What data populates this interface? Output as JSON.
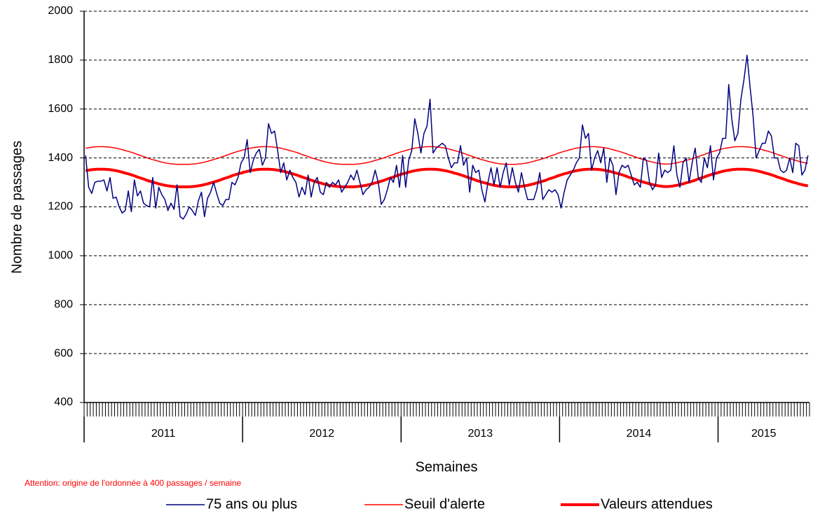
{
  "chart_data": {
    "type": "line",
    "y_label": "Nombre de passages",
    "x_label": "Semaines",
    "note": "Attention: origine de l'ordonnée à 400 passages / semaine",
    "ylim": [
      400,
      2000
    ],
    "yticks": [
      400,
      600,
      800,
      1000,
      1200,
      1400,
      1600,
      1800,
      2000
    ],
    "grid": true,
    "year_groups": [
      {
        "label": "2011",
        "weeks": 52
      },
      {
        "label": "2012",
        "weeks": 52
      },
      {
        "label": "2013",
        "weeks": 52
      },
      {
        "label": "2014",
        "weeks": 52
      },
      {
        "label": "2015",
        "weeks": 30
      }
    ],
    "series": [
      {
        "name": "75 ans ou plus",
        "color": "#000080",
        "width": 1.5,
        "values": [
          1410,
          1280,
          1255,
          1300,
          1305,
          1305,
          1310,
          1265,
          1320,
          1235,
          1240,
          1200,
          1175,
          1185,
          1265,
          1180,
          1310,
          1245,
          1265,
          1215,
          1205,
          1200,
          1320,
          1195,
          1280,
          1250,
          1230,
          1185,
          1215,
          1190,
          1290,
          1160,
          1150,
          1170,
          1200,
          1185,
          1165,
          1225,
          1260,
          1160,
          1235,
          1260,
          1300,
          1255,
          1215,
          1205,
          1230,
          1230,
          1300,
          1290,
          1320,
          1380,
          1400,
          1475,
          1340,
          1390,
          1420,
          1435,
          1370,
          1400,
          1540,
          1500,
          1510,
          1430,
          1340,
          1380,
          1310,
          1350,
          1320,
          1300,
          1240,
          1280,
          1250,
          1330,
          1240,
          1300,
          1320,
          1260,
          1250,
          1300,
          1280,
          1300,
          1290,
          1310,
          1260,
          1280,
          1300,
          1330,
          1310,
          1350,
          1300,
          1250,
          1270,
          1280,
          1300,
          1350,
          1300,
          1210,
          1230,
          1270,
          1320,
          1300,
          1370,
          1280,
          1410,
          1280,
          1390,
          1430,
          1560,
          1500,
          1420,
          1500,
          1530,
          1640,
          1420,
          1440,
          1450,
          1460,
          1450,
          1400,
          1360,
          1380,
          1380,
          1450,
          1370,
          1400,
          1260,
          1370,
          1340,
          1350,
          1270,
          1220,
          1300,
          1360,
          1290,
          1360,
          1280,
          1340,
          1380,
          1290,
          1360,
          1300,
          1260,
          1340,
          1280,
          1230,
          1230,
          1230,
          1270,
          1340,
          1230,
          1250,
          1270,
          1260,
          1270,
          1250,
          1195,
          1260,
          1310,
          1330,
          1350,
          1380,
          1400,
          1535,
          1480,
          1500,
          1350,
          1400,
          1430,
          1380,
          1440,
          1300,
          1400,
          1370,
          1250,
          1340,
          1370,
          1360,
          1370,
          1330,
          1290,
          1300,
          1280,
          1400,
          1390,
          1300,
          1270,
          1290,
          1420,
          1320,
          1350,
          1340,
          1350,
          1450,
          1330,
          1280,
          1380,
          1400,
          1300,
          1380,
          1440,
          1320,
          1300,
          1400,
          1360,
          1450,
          1310,
          1400,
          1420,
          1480,
          1480,
          1700,
          1560,
          1470,
          1500,
          1640,
          1720,
          1820,
          1690,
          1570,
          1400,
          1430,
          1460,
          1460,
          1510,
          1490,
          1400,
          1400,
          1350,
          1340,
          1350,
          1400,
          1340,
          1460,
          1450,
          1330,
          1350,
          1410
        ]
      },
      {
        "name": "Seuil d'alerte",
        "color": "#ff0000",
        "width": 1.5,
        "values": [
          1440,
          1442,
          1444,
          1445,
          1446,
          1446,
          1446,
          1445,
          1444,
          1442,
          1440,
          1437,
          1434,
          1430,
          1427,
          1423,
          1419,
          1414,
          1410,
          1406,
          1401,
          1397,
          1393,
          1390,
          1386,
          1383,
          1380,
          1378,
          1376,
          1375,
          1374,
          1374,
          1374,
          1374,
          1374,
          1375,
          1376,
          1378,
          1380,
          1383,
          1386,
          1390,
          1393,
          1397,
          1401,
          1406,
          1410,
          1414,
          1419,
          1423,
          1427,
          1430,
          1434,
          1437,
          1440,
          1442,
          1444,
          1445,
          1446,
          1446,
          1446,
          1445,
          1444,
          1442,
          1440,
          1437,
          1434,
          1430,
          1427,
          1423,
          1419,
          1414,
          1410,
          1406,
          1401,
          1397,
          1393,
          1390,
          1386,
          1383,
          1380,
          1378,
          1376,
          1375,
          1374,
          1374,
          1374,
          1374,
          1374,
          1375,
          1376,
          1378,
          1380,
          1383,
          1386,
          1390,
          1393,
          1397,
          1401,
          1406,
          1410,
          1414,
          1419,
          1423,
          1427,
          1430,
          1434,
          1437,
          1440,
          1442,
          1444,
          1445,
          1446,
          1446,
          1446,
          1445,
          1444,
          1442,
          1440,
          1437,
          1434,
          1430,
          1427,
          1423,
          1419,
          1414,
          1410,
          1406,
          1401,
          1397,
          1393,
          1390,
          1386,
          1383,
          1380,
          1378,
          1376,
          1375,
          1374,
          1374,
          1374,
          1374,
          1375,
          1376,
          1378,
          1380,
          1383,
          1386,
          1390,
          1393,
          1397,
          1401,
          1406,
          1410,
          1414,
          1419,
          1423,
          1427,
          1430,
          1434,
          1437,
          1440,
          1442,
          1444,
          1445,
          1446,
          1446,
          1446,
          1445,
          1444,
          1442,
          1440,
          1437,
          1434,
          1430,
          1427,
          1423,
          1419,
          1414,
          1410,
          1406,
          1401,
          1397,
          1393,
          1390,
          1386,
          1383,
          1380,
          1378,
          1376,
          1375,
          1375,
          1376,
          1378,
          1380,
          1383,
          1386,
          1390,
          1393,
          1397,
          1401,
          1406,
          1410,
          1414,
          1419,
          1423,
          1427,
          1430,
          1434,
          1437,
          1440,
          1442,
          1444,
          1445,
          1446,
          1446,
          1446,
          1445,
          1444,
          1442,
          1440,
          1437,
          1434,
          1430,
          1427,
          1423,
          1419,
          1414,
          1410,
          1406,
          1401,
          1397,
          1393,
          1390,
          1386,
          1383,
          1380,
          1378
        ]
      },
      {
        "name": "Valeurs attendues",
        "color": "#ff0000",
        "width": 4,
        "values": [
          1348,
          1350,
          1352,
          1353,
          1354,
          1354,
          1354,
          1353,
          1352,
          1350,
          1348,
          1345,
          1342,
          1338,
          1335,
          1331,
          1327,
          1322,
          1318,
          1314,
          1309,
          1305,
          1301,
          1298,
          1294,
          1291,
          1288,
          1286,
          1284,
          1283,
          1282,
          1282,
          1282,
          1282,
          1282,
          1283,
          1284,
          1286,
          1288,
          1291,
          1294,
          1298,
          1301,
          1305,
          1309,
          1314,
          1318,
          1322,
          1327,
          1331,
          1335,
          1338,
          1342,
          1345,
          1348,
          1350,
          1352,
          1353,
          1354,
          1354,
          1354,
          1353,
          1352,
          1350,
          1348,
          1345,
          1342,
          1338,
          1335,
          1331,
          1327,
          1322,
          1318,
          1314,
          1309,
          1305,
          1301,
          1298,
          1294,
          1291,
          1288,
          1286,
          1284,
          1283,
          1282,
          1282,
          1282,
          1282,
          1282,
          1283,
          1284,
          1286,
          1288,
          1291,
          1294,
          1298,
          1301,
          1305,
          1309,
          1314,
          1318,
          1322,
          1327,
          1331,
          1335,
          1338,
          1342,
          1345,
          1348,
          1350,
          1352,
          1353,
          1354,
          1354,
          1354,
          1353,
          1352,
          1350,
          1348,
          1345,
          1342,
          1338,
          1335,
          1331,
          1327,
          1322,
          1318,
          1314,
          1309,
          1305,
          1301,
          1298,
          1294,
          1291,
          1288,
          1286,
          1284,
          1283,
          1282,
          1282,
          1282,
          1282,
          1283,
          1284,
          1286,
          1288,
          1291,
          1294,
          1298,
          1301,
          1305,
          1309,
          1314,
          1318,
          1322,
          1327,
          1331,
          1335,
          1338,
          1342,
          1345,
          1348,
          1350,
          1352,
          1353,
          1354,
          1354,
          1354,
          1353,
          1352,
          1350,
          1348,
          1345,
          1342,
          1338,
          1335,
          1331,
          1327,
          1322,
          1318,
          1314,
          1309,
          1305,
          1301,
          1298,
          1294,
          1291,
          1288,
          1286,
          1284,
          1283,
          1283,
          1284,
          1286,
          1288,
          1291,
          1294,
          1298,
          1301,
          1305,
          1309,
          1314,
          1318,
          1322,
          1327,
          1331,
          1335,
          1338,
          1342,
          1345,
          1348,
          1350,
          1352,
          1353,
          1354,
          1354,
          1354,
          1353,
          1352,
          1350,
          1348,
          1345,
          1342,
          1338,
          1335,
          1331,
          1327,
          1322,
          1318,
          1314,
          1309,
          1305,
          1301,
          1298,
          1294,
          1291,
          1288,
          1286
        ]
      }
    ]
  }
}
